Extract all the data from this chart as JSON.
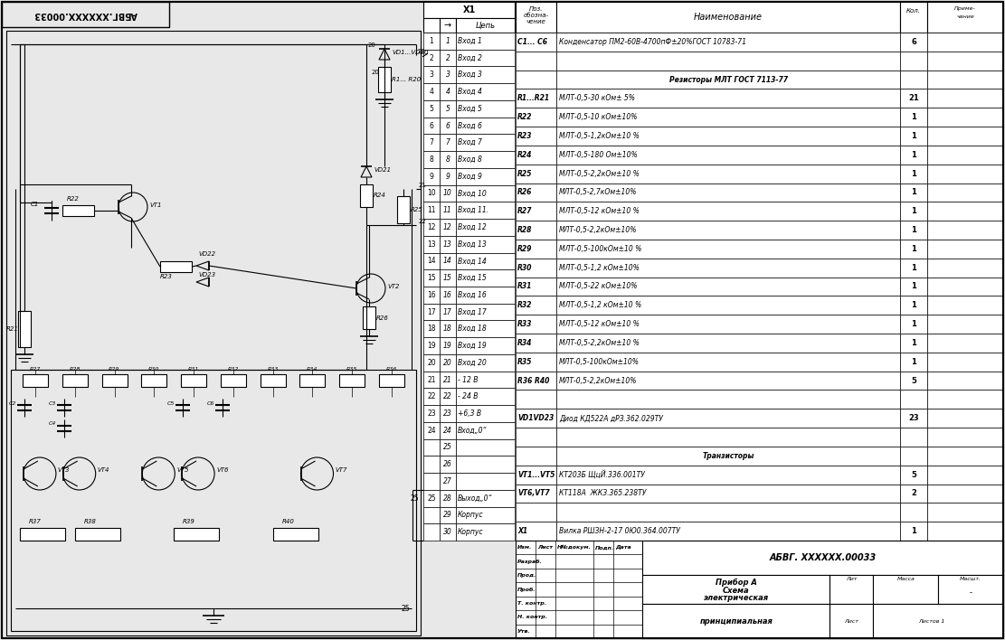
{
  "bg_color": "#e8e8e8",
  "line_color": "#000000",
  "title_stamp_mirrored": "АБВГ.ХХХХХХ.00033",
  "x1_header": "X1",
  "connector_header": "→",
  "chain_header": "Цепь",
  "connector_rows": [
    [
      "1",
      "1",
      "Вход 1"
    ],
    [
      "2",
      "2",
      "Вход 2"
    ],
    [
      "3",
      "3",
      "Вход 3"
    ],
    [
      "4",
      "4",
      "Вход 4"
    ],
    [
      "5",
      "5",
      "Вход 5"
    ],
    [
      "6",
      "6",
      "Вход 6"
    ],
    [
      "7",
      "7",
      "Вход 7"
    ],
    [
      "8",
      "8",
      "Вход 8"
    ],
    [
      "9",
      "9",
      "Вход 9"
    ],
    [
      "10",
      "10",
      "Вход 10"
    ],
    [
      "11",
      "11",
      "Вход 11."
    ],
    [
      "12",
      "12",
      "Вход 12"
    ],
    [
      "13",
      "13",
      "Вход 13"
    ],
    [
      "14",
      "14",
      "Вход 14"
    ],
    [
      "15",
      "15",
      "Вход 15"
    ],
    [
      "16",
      "16",
      "Вход 16"
    ],
    [
      "17",
      "17",
      "Вход 17"
    ],
    [
      "18",
      "18",
      "Вход 18"
    ],
    [
      "19",
      "19",
      "Вход 19"
    ],
    [
      "20",
      "20",
      "Вход 20"
    ],
    [
      "21",
      "21",
      "- 12 В"
    ],
    [
      "22",
      "22",
      "- 24 В"
    ],
    [
      "23",
      "23",
      "+6,3 В"
    ],
    [
      "24",
      "24",
      "Вход„0“"
    ],
    [
      "",
      "25",
      ""
    ],
    [
      "",
      "26",
      ""
    ],
    [
      "",
      "27",
      ""
    ],
    [
      "25",
      "28",
      "Выход„0“"
    ],
    [
      "",
      "29",
      "Корпус"
    ],
    [
      "",
      "30",
      "Корпус"
    ]
  ],
  "bom_rows": [
    [
      "C1... C6",
      "Конденсатор ПМ2-60В-4700пФ±20%ГОСТ 10783-71",
      "6",
      "",
      false
    ],
    [
      "",
      "",
      "",
      "",
      false
    ],
    [
      "",
      "Резисторы МЛТ ГОСТ 7113-77",
      "",
      "",
      true
    ],
    [
      "R1...R21",
      "МЛТ-0,5-30 кОм± 5%",
      "21",
      "",
      false
    ],
    [
      "R22",
      "МЛТ-0,5-10 кОм±10%",
      "1",
      "",
      false
    ],
    [
      "R23",
      "МЛТ-0,5-1,2кОм±10 %",
      "1",
      "",
      false
    ],
    [
      "R24",
      "МЛТ-0,5-180 Ом±10%",
      "1",
      "",
      false
    ],
    [
      "R25",
      "МЛТ-0,5-2,2кОм±10 %",
      "1",
      "",
      false
    ],
    [
      "R26",
      "МЛТ-0,5-2,7кОм±10%",
      "1",
      "",
      false
    ],
    [
      "R27",
      "МЛТ-0,5-12 кОм±10 %",
      "1",
      "",
      false
    ],
    [
      "R28",
      "МЛТ-0,5-2,2кОм±10%",
      "1",
      "",
      false
    ],
    [
      "R29",
      "МЛТ-0,5-100кОм±10 %",
      "1",
      "",
      false
    ],
    [
      "R30",
      "МЛТ-0,5-1,2 кОм±10%",
      "1",
      "",
      false
    ],
    [
      "R31",
      "МЛТ-0,5-22 кОм±10%",
      "1",
      "",
      false
    ],
    [
      "R32",
      "МЛТ-0,5-1,2 кОм±10 %",
      "1",
      "",
      false
    ],
    [
      "R33",
      "МЛТ-0,5-12 кОм±10 %",
      "1",
      "",
      false
    ],
    [
      "R34",
      "МЛТ-0,5-2,2кОм±10 %",
      "1",
      "",
      false
    ],
    [
      "R35",
      "МЛТ-0,5-100кОм±10%",
      "1",
      "",
      false
    ],
    [
      "R36 R40",
      "МЛТ-0,5-2,2кОм±10%",
      "5",
      "",
      false
    ],
    [
      "",
      "",
      "",
      "",
      false
    ],
    [
      "VD1VD23",
      "Диод КД522А дРЗ.362.029ТУ",
      "23",
      "",
      false
    ],
    [
      "",
      "",
      "",
      "",
      false
    ],
    [
      "",
      "Транзисторы",
      "",
      "",
      true
    ],
    [
      "VT1...VT5",
      "КТ203Б ЩцЙ.336.001ТУ",
      "5",
      "",
      false
    ],
    [
      "VT6,VT7",
      "КТ118А  ЖКЗ.365.238ТУ",
      "2",
      "",
      false
    ],
    [
      "",
      "",
      "",
      "",
      false
    ],
    [
      "X1",
      "Вилка РШЗН-2-17 0Ю0.364.007ТУ",
      "1",
      "",
      false
    ]
  ],
  "stamp_code": "АБВГ. ХХХХХХ.00033",
  "stamp_izm": "Изм.",
  "stamp_list": "Лист",
  "stamp_ndokum": "Н№докум.",
  "stamp_podp": "Подп.",
  "stamp_data": "Дата",
  "stamp_razrab": "Разраб.",
  "stamp_prod": "Прод.",
  "stamp_t_kontr": "Т. контр.",
  "stamp_n_kontr": "Н. контр.",
  "stamp_utv": "Утв.",
  "stamp_device": "Прибор А",
  "stamp_schema1": "Схема",
  "stamp_schema2": "электрическая",
  "stamp_schema3": "принципиальная",
  "stamp_lit": "Лит",
  "stamp_massa": "Масса",
  "stamp_masht": "Масшт.",
  "stamp_dash": "-",
  "stamp_list2": "Лист",
  "stamp_listov": "Листов 1"
}
